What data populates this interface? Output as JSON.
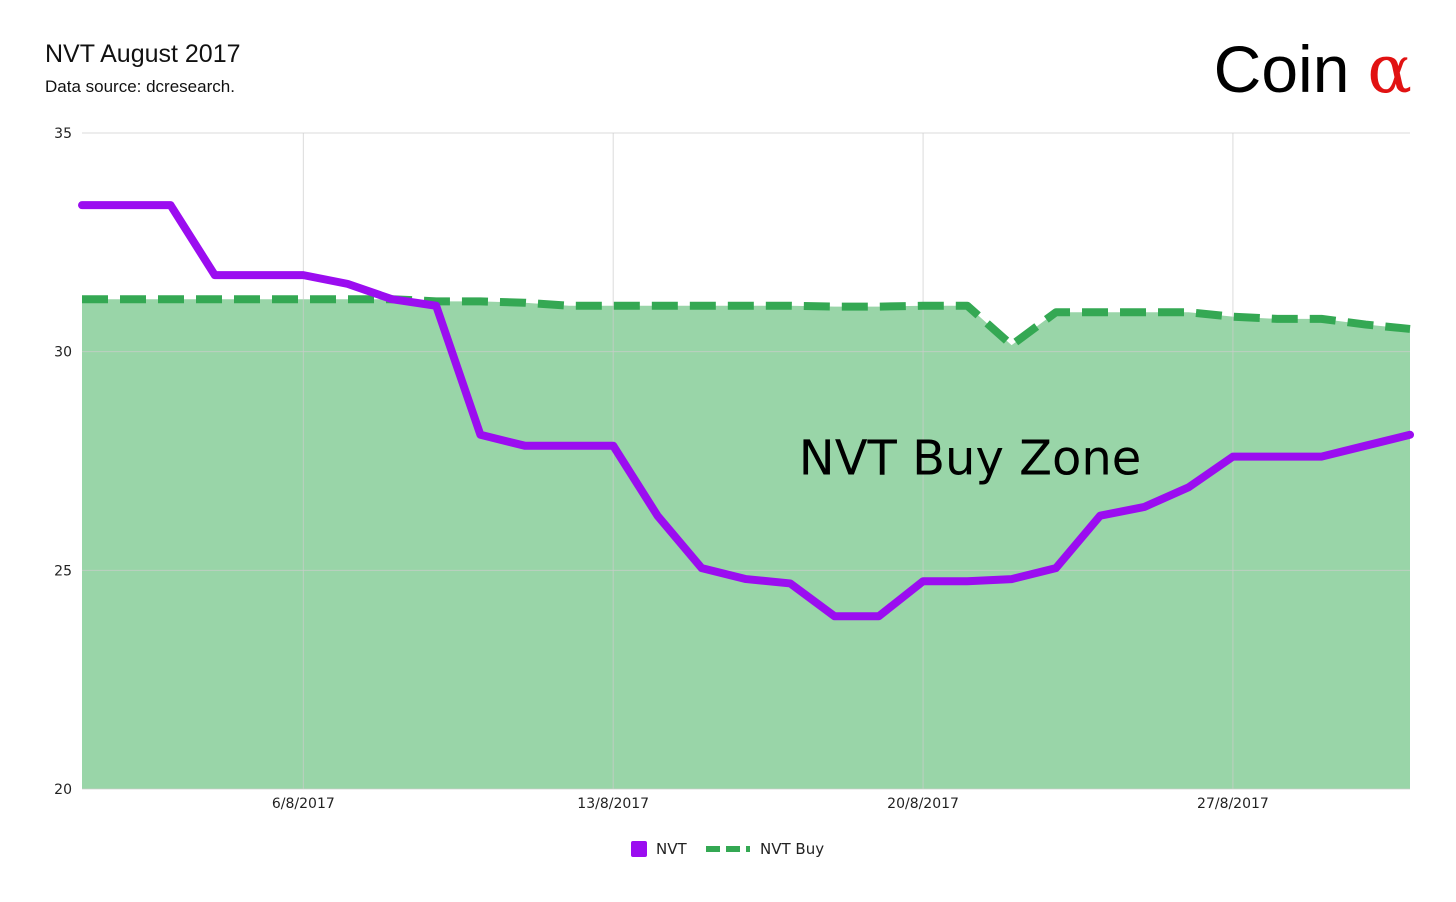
{
  "header": {
    "title": "NVT August 2017",
    "subtitle": "Data source: dcresearch.",
    "brand_word": "Coin",
    "brand_symbol": "α"
  },
  "colors": {
    "nvt": "#9b0df0",
    "nvt_buy": "#34a853",
    "fill": "#99d5a8",
    "grid": "#cccccc",
    "brand_symbol": "#e11212"
  },
  "chart_data": {
    "type": "line",
    "title": "NVT August 2017",
    "subtitle": "Data source: dcresearch.",
    "xlabel": "",
    "ylabel": "",
    "x": [
      "1/8/2017",
      "2/8/2017",
      "3/8/2017",
      "4/8/2017",
      "5/8/2017",
      "6/8/2017",
      "7/8/2017",
      "8/8/2017",
      "9/8/2017",
      "10/8/2017",
      "11/8/2017",
      "12/8/2017",
      "13/8/2017",
      "14/8/2017",
      "15/8/2017",
      "16/8/2017",
      "17/8/2017",
      "18/8/2017",
      "19/8/2017",
      "20/8/2017",
      "21/8/2017",
      "22/8/2017",
      "23/8/2017",
      "24/8/2017",
      "25/8/2017",
      "26/8/2017",
      "27/8/2017",
      "28/8/2017",
      "29/8/2017",
      "30/8/2017",
      "31/8/2017"
    ],
    "x_ticks": [
      "6/8/2017",
      "13/8/2017",
      "20/8/2017",
      "27/8/2017"
    ],
    "ylim": [
      20,
      35
    ],
    "y_ticks": [
      20,
      25,
      30,
      35
    ],
    "grid": true,
    "legend_position": "bottom-center",
    "series": [
      {
        "name": "NVT",
        "style": "solid",
        "color": "#9b0df0",
        "values": [
          33.35,
          33.35,
          33.35,
          31.75,
          31.75,
          31.75,
          31.55,
          31.2,
          31.05,
          28.1,
          27.85,
          27.85,
          27.85,
          26.25,
          25.05,
          24.8,
          24.7,
          23.95,
          23.95,
          24.75,
          24.75,
          24.8,
          25.05,
          26.25,
          26.45,
          26.9,
          27.6,
          27.6,
          27.6,
          27.85,
          28.1
        ]
      },
      {
        "name": "NVT Buy",
        "style": "dashed",
        "color": "#34a853",
        "fill": "#99d5a8",
        "values": [
          31.2,
          31.2,
          31.2,
          31.2,
          31.2,
          31.2,
          31.2,
          31.2,
          31.15,
          31.15,
          31.12,
          31.05,
          31.05,
          31.05,
          31.05,
          31.05,
          31.05,
          31.03,
          31.03,
          31.05,
          31.05,
          30.15,
          30.9,
          30.9,
          30.9,
          30.9,
          30.8,
          30.75,
          30.75,
          30.62,
          30.52
        ]
      }
    ],
    "annotations": [
      {
        "text": "NVT Buy Zone",
        "x": "19/8/2017",
        "y": 27.6
      }
    ]
  }
}
